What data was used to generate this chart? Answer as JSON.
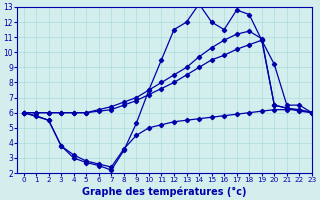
{
  "bg_color": "#d4eeee",
  "line_color": "#0000aa",
  "grid_color": "#aadddd",
  "xlabel": "Graphe des températures (°c)",
  "xlabel_fontsize": 7.0,
  "xlim": [
    -0.5,
    23
  ],
  "ylim": [
    2,
    13
  ],
  "xticks": [
    0,
    1,
    2,
    3,
    4,
    5,
    6,
    7,
    8,
    9,
    10,
    11,
    12,
    13,
    14,
    15,
    16,
    17,
    18,
    19,
    20,
    21,
    22,
    23
  ],
  "yticks": [
    2,
    3,
    4,
    5,
    6,
    7,
    8,
    9,
    10,
    11,
    12,
    13
  ],
  "series": [
    {
      "x": [
        0,
        1,
        2,
        3,
        4,
        5,
        6,
        7,
        8,
        9,
        10,
        11,
        12,
        13,
        14,
        15,
        16,
        17,
        18,
        19,
        20,
        21,
        22,
        23
      ],
      "y": [
        6,
        5.8,
        5.5,
        3.8,
        3.0,
        2.7,
        2.5,
        2.2,
        3.5,
        5.3,
        7.5,
        9.5,
        11.5,
        12.0,
        13.2,
        12.0,
        11.5,
        12.8,
        12.5,
        10.8,
        9.2,
        6.5,
        6.5,
        6.0
      ]
    },
    {
      "x": [
        0,
        2,
        3,
        4,
        5,
        6,
        7,
        8,
        9,
        10,
        11,
        12,
        13,
        14,
        15,
        16,
        17,
        18,
        19,
        20,
        21,
        22,
        23
      ],
      "y": [
        6,
        5.5,
        3.8,
        3.2,
        2.8,
        2.6,
        2.4,
        3.6,
        4.5,
        5.0,
        5.2,
        5.4,
        5.5,
        5.6,
        5.7,
        5.8,
        5.9,
        6.0,
        6.1,
        6.2,
        6.2,
        6.2,
        6.0
      ]
    },
    {
      "x": [
        0,
        1,
        2,
        3,
        4,
        5,
        6,
        7,
        8,
        9,
        10,
        11,
        12,
        13,
        14,
        15,
        16,
        17,
        18,
        19,
        20,
        21,
        22,
        23
      ],
      "y": [
        6.0,
        6.0,
        6.0,
        6.0,
        6.0,
        6.0,
        6.1,
        6.2,
        6.5,
        6.8,
        7.2,
        7.6,
        8.0,
        8.5,
        9.0,
        9.5,
        9.8,
        10.2,
        10.5,
        10.8,
        6.5,
        6.3,
        6.1,
        6.0
      ]
    },
    {
      "x": [
        0,
        1,
        2,
        3,
        4,
        5,
        6,
        7,
        8,
        9,
        10,
        11,
        12,
        13,
        14,
        15,
        16,
        17,
        18,
        19,
        20,
        21,
        22,
        23
      ],
      "y": [
        6.0,
        6.0,
        6.0,
        6.0,
        6.0,
        6.0,
        6.2,
        6.4,
        6.7,
        7.0,
        7.5,
        8.0,
        8.5,
        9.0,
        9.7,
        10.3,
        10.8,
        11.2,
        11.4,
        10.9,
        6.5,
        6.3,
        6.2,
        6.0
      ]
    }
  ]
}
